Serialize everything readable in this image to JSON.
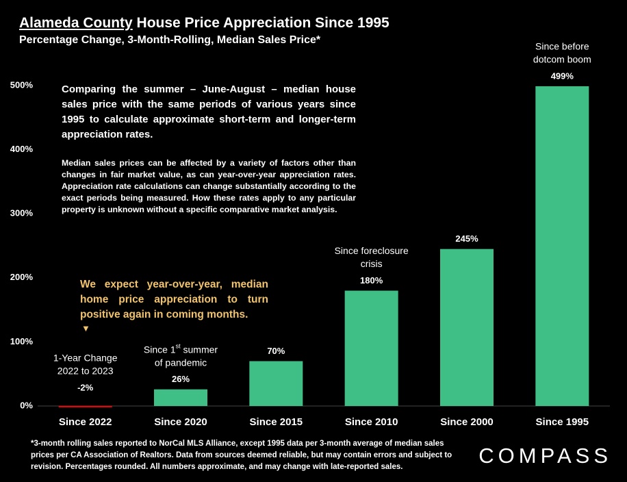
{
  "chart_data": {
    "type": "bar",
    "title_underlined": "Alameda County",
    "title": " House Price Appreciation Since 1995",
    "subtitle": "Percentage Change, 3-Month-Rolling, Median Sales Price*",
    "categories": [
      "Since 2022",
      "Since 2020",
      "Since 2015",
      "Since 2010",
      "Since 2000",
      "Since 1995"
    ],
    "values": [
      -2,
      26,
      70,
      180,
      245,
      499
    ],
    "value_labels": [
      "-2%",
      "26%",
      "70%",
      "180%",
      "245%",
      "499%"
    ],
    "colors": [
      "#ff0000",
      "#3fbf86",
      "#3fbf86",
      "#3fbf86",
      "#3fbf86",
      "#3fbf86"
    ],
    "ylim": [
      0,
      500
    ],
    "yticks": [
      {
        "value": 0,
        "label": "0%"
      },
      {
        "value": 100,
        "label": "100%"
      },
      {
        "value": 200,
        "label": "200%"
      },
      {
        "value": 300,
        "label": "300%"
      },
      {
        "value": 400,
        "label": "400%"
      },
      {
        "value": 500,
        "label": "500%"
      }
    ],
    "grid": false,
    "bar_annotations": [
      {
        "index": 0,
        "lines": [
          "1-Year Change",
          "2022 to 2023"
        ]
      },
      {
        "index": 1,
        "lines": [
          "Since 1",
          "summer",
          "of pandemic"
        ],
        "sup": "st"
      },
      {
        "index": 3,
        "lines": [
          "Since foreclosure",
          "crisis"
        ]
      },
      {
        "index": 5,
        "lines": [
          "Since before",
          "dotcom boom"
        ]
      }
    ],
    "paragraph_1": "Comparing the summer – June-August – median house sales price with the same periods of various years since 1995 to calculate approximate short-term and longer-term appreciation rates.",
    "paragraph_2": "Median sales prices can be affected by a variety of factors other than changes in fair market value, as can year-over-year appreciation rates. Appreciation rate calculations can change substantially according to the exact periods being measured. How these rates apply to any particular property is unknown without a specific comparative market analysis.",
    "note": "We expect year-over-year, median home price appreciation to turn positive again in coming months.",
    "note_arrow": "▼",
    "footnote": "*3-month rolling sales reported to NorCal MLS Alliance, except 1995 data per 3-month average of median sales prices per CA Association of Realtors. Data from sources deemed reliable, but may contain errors and subject to revision. Percentages rounded. All numbers approximate, and may change with late-reported sales.",
    "logo": "COMPASS"
  }
}
